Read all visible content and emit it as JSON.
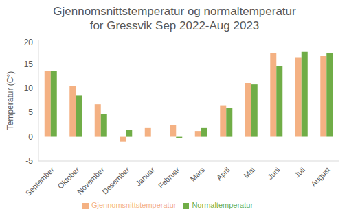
{
  "chart_data": {
    "type": "bar",
    "title": [
      "Gjennomsnittstemperatur og normaltemperatur",
      "for Gressvik Sep 2022-Aug 2023"
    ],
    "y_label": "Temperatur (C°)",
    "categories": [
      "September",
      "Oktober",
      "November",
      "Desember",
      "Januar",
      "Februar",
      "Mars",
      "April",
      "Mai",
      "Juni",
      "Juli",
      "August"
    ],
    "series": [
      {
        "name": "Gjennomsnittstemperatur",
        "color": "#f4b183",
        "values": [
          13.5,
          10.5,
          6.7,
          -1.0,
          1.8,
          2.5,
          1.2,
          6.5,
          11.1,
          17.2,
          16.4,
          16.6
        ]
      },
      {
        "name": "Normaltemperatur",
        "color": "#70ad47",
        "values": [
          13.5,
          8.5,
          4.7,
          1.4,
          0,
          -0.2,
          1.8,
          5.9,
          10.8,
          14.6,
          17.5,
          17.2
        ]
      }
    ],
    "ylim": [
      -5,
      20
    ],
    "yticks": [
      -5,
      0,
      5,
      10,
      15,
      20
    ],
    "grid": false,
    "legend": "bottom"
  }
}
